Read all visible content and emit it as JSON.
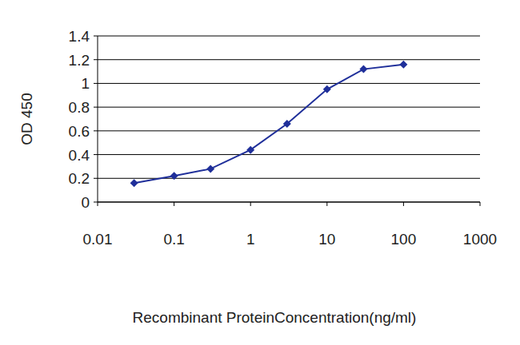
{
  "chart_data": {
    "type": "line",
    "x_label": "Recombinant ProteinConcentration(ng/ml)",
    "y_label": "OD 450",
    "x": [
      0.03,
      0.1,
      0.3,
      1,
      3,
      10,
      30,
      100
    ],
    "values": [
      0.16,
      0.22,
      0.28,
      0.44,
      0.66,
      0.95,
      1.12,
      1.16
    ],
    "color": "#1f2f9a",
    "marker": "diamond",
    "log": "x",
    "grid": true,
    "xlim": [
      0.01,
      1000
    ],
    "xticks": [
      0.01,
      0.1,
      1,
      10,
      100,
      1000
    ],
    "ylim": [
      0,
      1.4
    ],
    "yticks": [
      0,
      0.2,
      0.4,
      0.6,
      0.8,
      1,
      1.2,
      1.4
    ]
  }
}
